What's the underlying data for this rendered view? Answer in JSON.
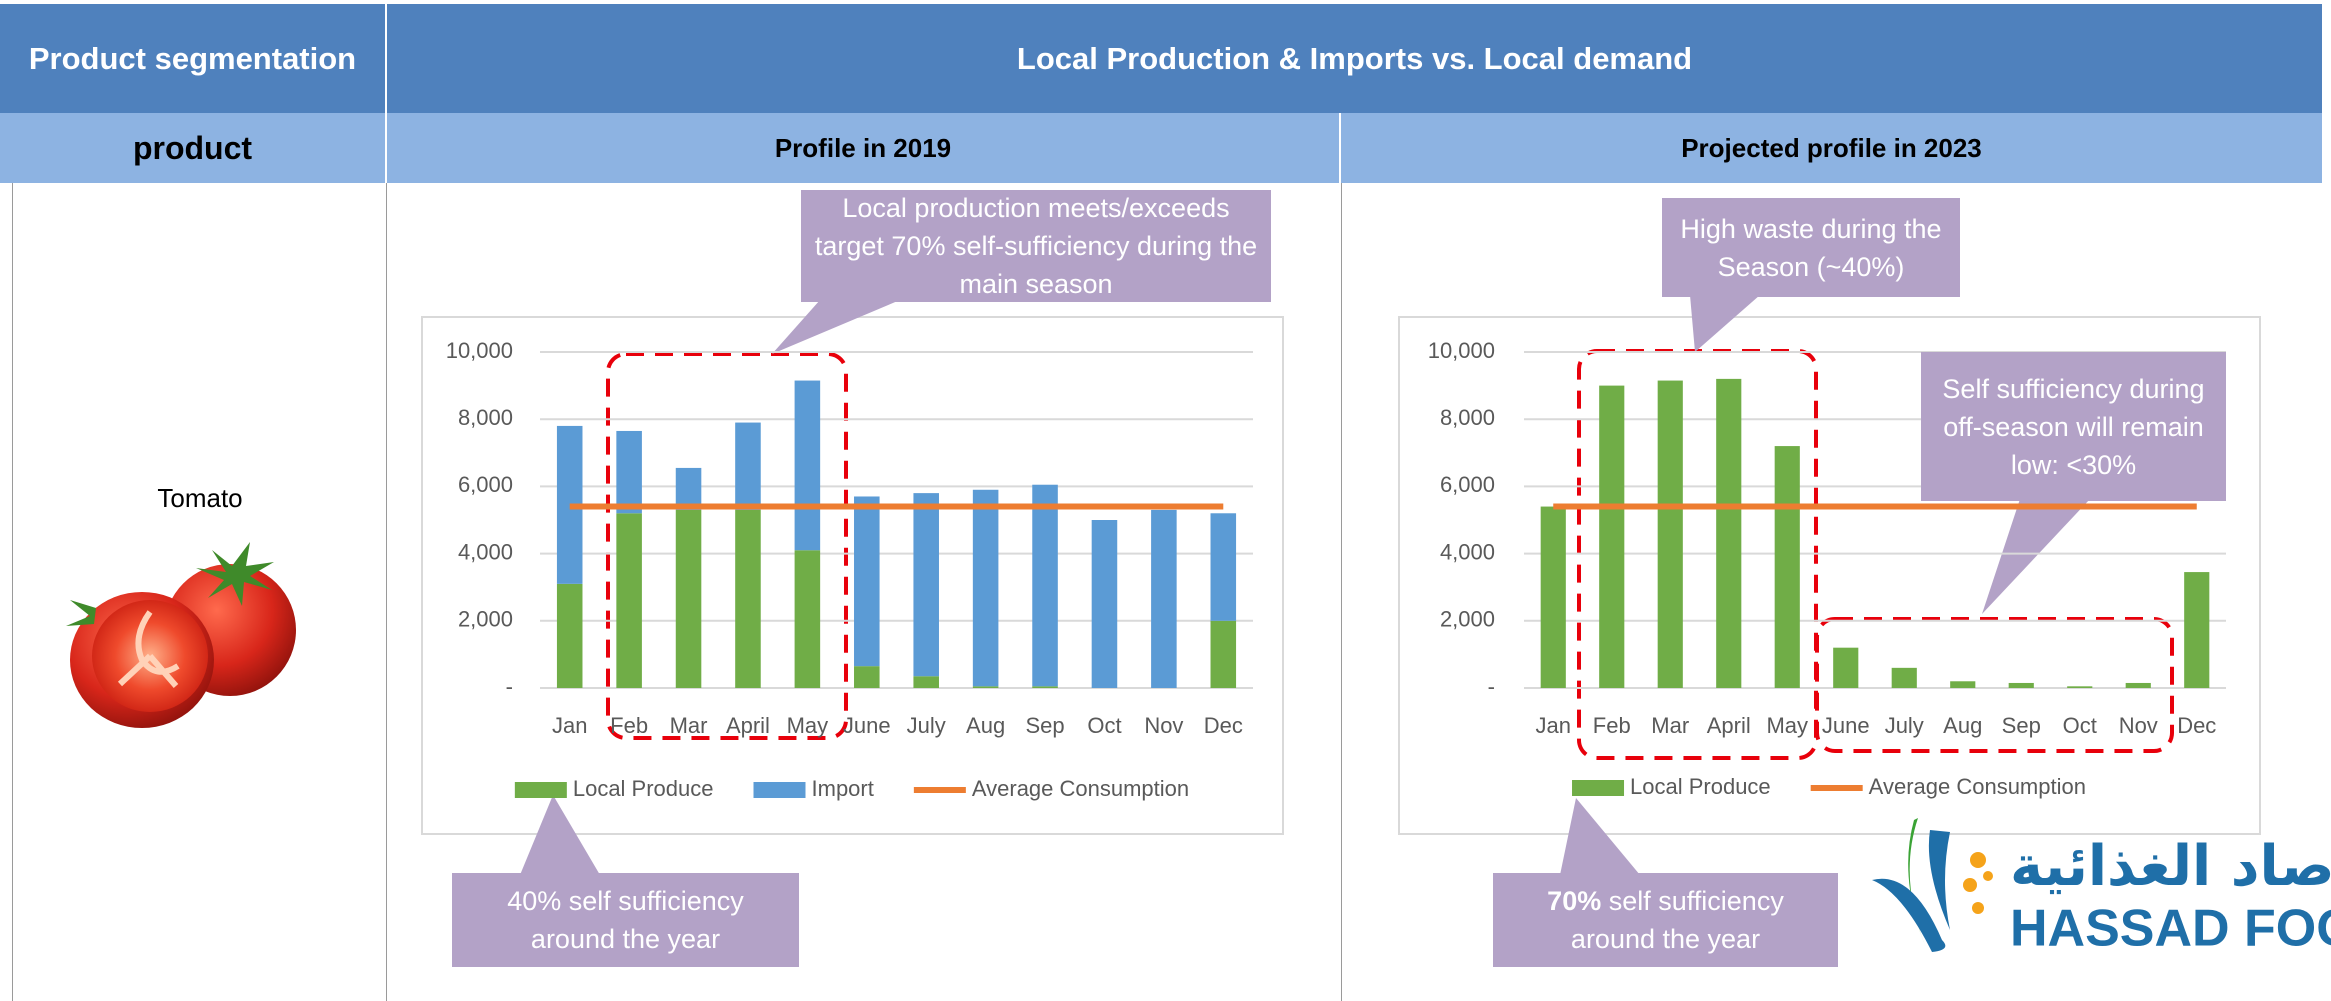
{
  "header": {
    "segmentation": "Product segmentation",
    "title": "Local Production & Imports vs. Local demand",
    "product": "product"
  },
  "row": {
    "product": "Tomato"
  },
  "chart_data": [
    {
      "type": "bar",
      "stacked": true,
      "title": "Profile in 2019",
      "categories": [
        "Jan",
        "Feb",
        "Mar",
        "April",
        "May",
        "June",
        "July",
        "Aug",
        "Sep",
        "Oct",
        "Nov",
        "Dec"
      ],
      "series": [
        {
          "name": "Local Produce",
          "type": "bar",
          "color": "#70ad47",
          "values": [
            3100,
            5200,
            5300,
            5300,
            4100,
            650,
            350,
            50,
            50,
            0,
            0,
            2000
          ]
        },
        {
          "name": "Import",
          "type": "bar",
          "color": "#5b9bd5",
          "values": [
            4700,
            2450,
            1250,
            2600,
            5050,
            5050,
            5450,
            5850,
            6000,
            5000,
            5300,
            3200
          ]
        },
        {
          "name": "Average Consumption",
          "type": "line",
          "color": "#ed7d31",
          "values": [
            5400,
            5400,
            5400,
            5400,
            5400,
            5400,
            5400,
            5400,
            5400,
            5400,
            5400,
            5400
          ]
        }
      ],
      "ylim": [
        0,
        10000
      ],
      "yticks": [
        {
          "value": 0,
          "label": "-"
        },
        {
          "value": 2000,
          "label": "2,000"
        },
        {
          "value": 4000,
          "label": "4,000"
        },
        {
          "value": 6000,
          "label": "6,000"
        },
        {
          "value": 8000,
          "label": "8,000"
        },
        {
          "value": 10000,
          "label": "10,000"
        }
      ],
      "grid": true,
      "legend": "bottom",
      "annotations": [
        {
          "text": "Local production meets/exceeds target 70% self-sufficiency during the main season"
        },
        {
          "text": "40% self sufficiency around the year"
        }
      ]
    },
    {
      "type": "bar",
      "stacked": true,
      "title": "Projected profile in 2023",
      "categories": [
        "Jan",
        "Feb",
        "Mar",
        "April",
        "May",
        "June",
        "July",
        "Aug",
        "Sep",
        "Oct",
        "Nov",
        "Dec"
      ],
      "series": [
        {
          "name": "Local Produce",
          "type": "bar",
          "color": "#70ad47",
          "values": [
            5400,
            9000,
            9150,
            9200,
            7200,
            1200,
            600,
            200,
            150,
            50,
            150,
            3450
          ]
        },
        {
          "name": "Average Consumption",
          "type": "line",
          "color": "#ed7d31",
          "values": [
            5400,
            5400,
            5400,
            5400,
            5400,
            5400,
            5400,
            5400,
            5400,
            5400,
            5400,
            5400
          ]
        }
      ],
      "ylim": [
        0,
        10000
      ],
      "yticks": [
        {
          "value": 0,
          "label": "-"
        },
        {
          "value": 2000,
          "label": "2,000"
        },
        {
          "value": 4000,
          "label": "4,000"
        },
        {
          "value": 6000,
          "label": "6,000"
        },
        {
          "value": 8000,
          "label": "8,000"
        },
        {
          "value": 10000,
          "label": "10,000"
        }
      ],
      "grid": true,
      "legend": "bottom",
      "annotations": [
        {
          "text": "High waste during the Season (~40%)"
        },
        {
          "text": "Self sufficiency during off-season will remain low: <30%"
        },
        {
          "bold": "70%",
          "text": "self sufficiency around the year"
        }
      ]
    }
  ],
  "logo": {
    "arabic": "صاد الغذائية",
    "latin": "HASSAD FOO"
  }
}
